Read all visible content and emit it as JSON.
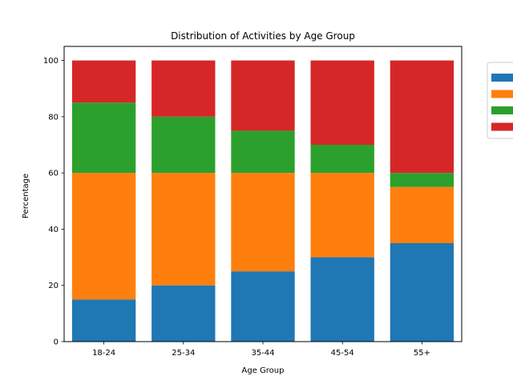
{
  "chart_data": {
    "type": "bar",
    "stacked": true,
    "title": "Distribution of Activities by Age Group",
    "xlabel": "Age Group",
    "ylabel": "Percentage",
    "ylim": [
      0,
      105
    ],
    "yticks": [
      0,
      20,
      40,
      60,
      80,
      100
    ],
    "categories": [
      "18-24",
      "25-34",
      "35-44",
      "45-54",
      "55+"
    ],
    "series": [
      {
        "values": [
          15,
          20,
          25,
          30,
          35
        ],
        "color": "#1f77b4"
      },
      {
        "values": [
          45,
          40,
          35,
          30,
          20
        ],
        "color": "#ff7f0e"
      },
      {
        "values": [
          25,
          20,
          15,
          10,
          5
        ],
        "color": "#2ca02c"
      },
      {
        "values": [
          15,
          20,
          25,
          30,
          40
        ],
        "color": "#d62728"
      }
    ],
    "legend": {
      "placement": "outside upper right",
      "entries_text_visible": false
    },
    "grid": false
  }
}
